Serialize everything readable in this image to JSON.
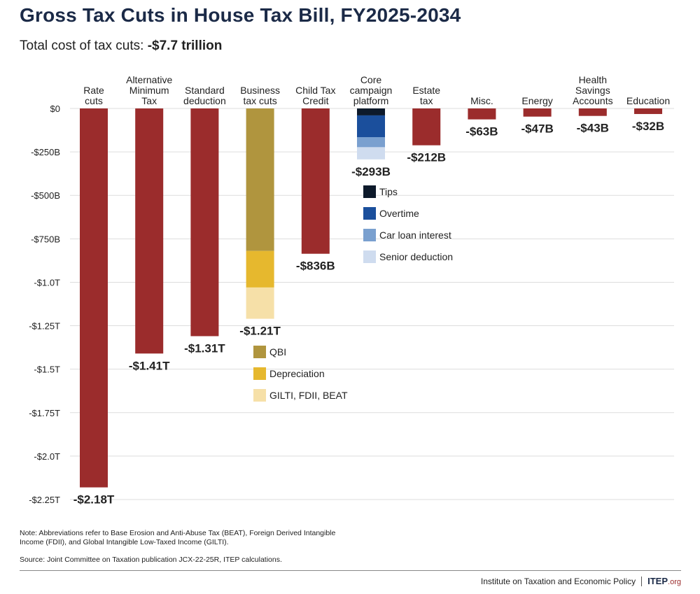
{
  "title": "Gross Tax Cuts in House Tax Bill, FY2025-2034",
  "subtitle": {
    "prefix": "Total cost of tax cuts: ",
    "total": "-$7.7 trillion"
  },
  "colors": {
    "main": "#9b2c2c",
    "grid": "#dddddd",
    "tips": "#0d1a2b",
    "overtime": "#1b4f9c",
    "car_loan_interest": "#7aa0cf",
    "senior_deduction": "#cfdcef",
    "qbi": "#b0953e",
    "depreciation": "#e6b82e",
    "giltis": "#f6e0a8"
  },
  "chart_data": {
    "type": "bar",
    "units": "billions of dollars",
    "ylim": [
      -2250,
      0
    ],
    "yticks": [
      0,
      -250,
      -500,
      -750,
      -1000,
      -1250,
      -1500,
      -1750,
      -2000,
      -2250
    ],
    "ytick_labels": [
      "$0",
      "-$250B",
      "-$500B",
      "-$750B",
      "-$1.0T",
      "-$1.25T",
      "-$1.5T",
      "-$1.75T",
      "-$2.0T",
      "-$2.25T"
    ],
    "grid": true,
    "categories": [
      [
        "Rate",
        "cuts"
      ],
      [
        "Alternative",
        "Minimum",
        "Tax"
      ],
      [
        "Standard",
        "deduction"
      ],
      [
        "Business",
        "tax cuts"
      ],
      [
        "Child Tax",
        "Credit"
      ],
      [
        "Core",
        "campaign",
        "platform"
      ],
      [
        "Estate",
        "tax"
      ],
      [
        "Misc."
      ],
      [
        "Energy"
      ],
      [
        "Health",
        "Savings",
        "Accounts"
      ],
      [
        "Education"
      ]
    ],
    "bars": [
      {
        "value": -2180,
        "label": "-$2.18T",
        "segments": [
          {
            "name": "",
            "value": -2180,
            "color_key": "main"
          }
        ]
      },
      {
        "value": -1410,
        "label": "-$1.41T",
        "segments": [
          {
            "name": "",
            "value": -1410,
            "color_key": "main"
          }
        ]
      },
      {
        "value": -1310,
        "label": "-$1.31T",
        "segments": [
          {
            "name": "",
            "value": -1310,
            "color_key": "main"
          }
        ]
      },
      {
        "value": -1210,
        "label": "-$1.21T",
        "segments": [
          {
            "name": "QBI",
            "value": -820,
            "color_key": "qbi"
          },
          {
            "name": "Depreciation",
            "value": -210,
            "color_key": "depreciation"
          },
          {
            "name": "GILTI, FDII, BEAT",
            "value": -180,
            "color_key": "giltis"
          }
        ]
      },
      {
        "value": -836,
        "label": "-$836B",
        "segments": [
          {
            "name": "",
            "value": -836,
            "color_key": "main"
          }
        ]
      },
      {
        "value": -293,
        "label": "-$293B",
        "segments": [
          {
            "name": "Tips",
            "value": -40,
            "color_key": "tips"
          },
          {
            "name": "Overtime",
            "value": -125,
            "color_key": "overtime"
          },
          {
            "name": "Car loan interest",
            "value": -58,
            "color_key": "car_loan_interest"
          },
          {
            "name": "Senior deduction",
            "value": -70,
            "color_key": "senior_deduction"
          }
        ]
      },
      {
        "value": -212,
        "label": "-$212B",
        "segments": [
          {
            "name": "",
            "value": -212,
            "color_key": "main"
          }
        ]
      },
      {
        "value": -63,
        "label": "-$63B",
        "segments": [
          {
            "name": "",
            "value": -63,
            "color_key": "main"
          }
        ]
      },
      {
        "value": -47,
        "label": "-$47B",
        "segments": [
          {
            "name": "",
            "value": -47,
            "color_key": "main"
          }
        ]
      },
      {
        "value": -43,
        "label": "-$43B",
        "segments": [
          {
            "name": "",
            "value": -43,
            "color_key": "main"
          }
        ]
      },
      {
        "value": -32,
        "label": "-$32B",
        "segments": [
          {
            "name": "",
            "value": -32,
            "color_key": "main"
          }
        ]
      }
    ],
    "legends": [
      {
        "bar_index": 5,
        "items": [
          {
            "label": "Tips",
            "color_key": "tips"
          },
          {
            "label": "Overtime",
            "color_key": "overtime"
          },
          {
            "label": "Car loan interest",
            "color_key": "car_loan_interest"
          },
          {
            "label": "Senior deduction",
            "color_key": "senior_deduction"
          }
        ]
      },
      {
        "bar_index": 3,
        "items": [
          {
            "label": "QBI",
            "color_key": "qbi"
          },
          {
            "label": "Depreciation",
            "color_key": "depreciation"
          },
          {
            "label": "GILTI, FDII, BEAT",
            "color_key": "giltis"
          }
        ]
      }
    ]
  },
  "note": "Note: Abbreviations refer to Base Erosion and Anti-Abuse Tax (BEAT), Foreign Derived Intangible Income (FDII), and Global Intangible Low-Taxed Income (GILTI).",
  "source": "Source: Joint Committee on Taxation publication JCX-22-25R, ITEP calculations.",
  "footer": {
    "org_name": "Institute on Taxation and Economic Policy",
    "logo_main": "ITEP",
    "logo_suffix": ".org"
  }
}
